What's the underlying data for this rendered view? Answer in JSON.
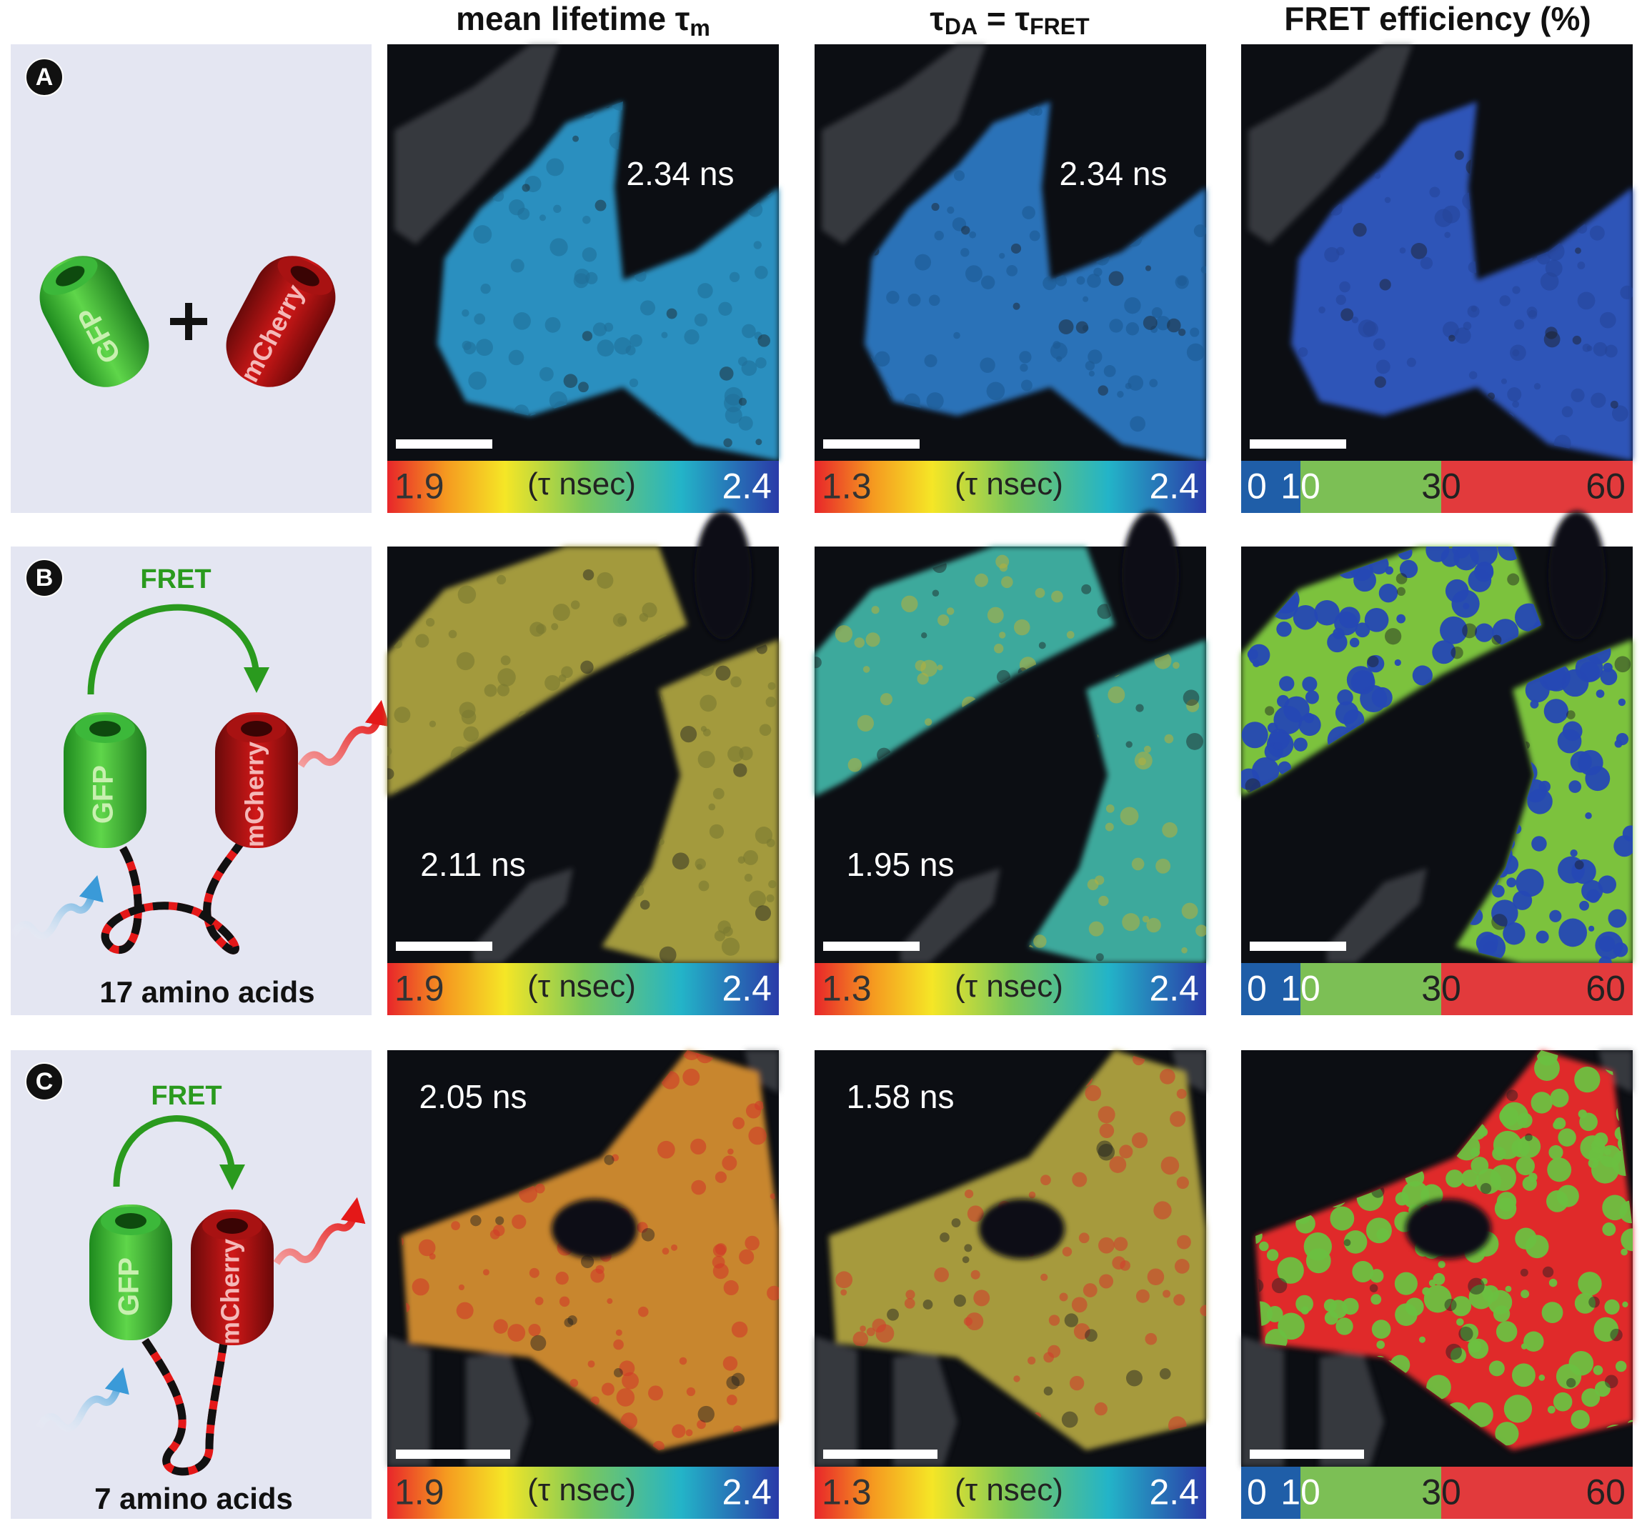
{
  "headers": {
    "lifetime": {
      "text": "mean lifetime τ",
      "sub": "m"
    },
    "tau": {
      "t1": "τ",
      "sub1": "DA",
      "t2": " = τ",
      "sub2": "FRET"
    },
    "efficiency": "FRET efficiency (%)"
  },
  "rows": [
    {
      "letter": "A",
      "donor": "GFP",
      "acceptor": "mCherry",
      "panels": [
        {
          "lifetime": "2.34 ns",
          "scale": [
            "1.9",
            "(τ nsec)",
            "2.4"
          ]
        },
        {
          "lifetime": "2.34 ns",
          "scale": [
            "1.3",
            "(τ nsec)",
            "2.4"
          ]
        },
        {
          "scale": [
            "0",
            "10",
            "30",
            "60"
          ]
        }
      ]
    },
    {
      "letter": "B",
      "fret": "FRET",
      "donor": "GFP",
      "acceptor": "mCherry",
      "linker": "17 amino acids",
      "panels": [
        {
          "lifetime": "2.11 ns",
          "scale": [
            "1.9",
            "(τ nsec)",
            "2.4"
          ]
        },
        {
          "lifetime": "1.95 ns",
          "scale": [
            "1.3",
            "(τ nsec)",
            "2.4"
          ]
        },
        {
          "scale": [
            "0",
            "10",
            "30",
            "60"
          ]
        }
      ]
    },
    {
      "letter": "C",
      "fret": "FRET",
      "donor": "GFP",
      "acceptor": "mCherry",
      "linker": "7 amino acids",
      "panels": [
        {
          "lifetime": "2.05 ns",
          "scale": [
            "1.9",
            "(τ nsec)",
            "2.4"
          ]
        },
        {
          "lifetime": "1.58 ns",
          "scale": [
            "1.3",
            "(τ nsec)",
            "2.4"
          ]
        },
        {
          "scale": [
            "0",
            "10",
            "30",
            "60"
          ]
        }
      ]
    }
  ]
}
